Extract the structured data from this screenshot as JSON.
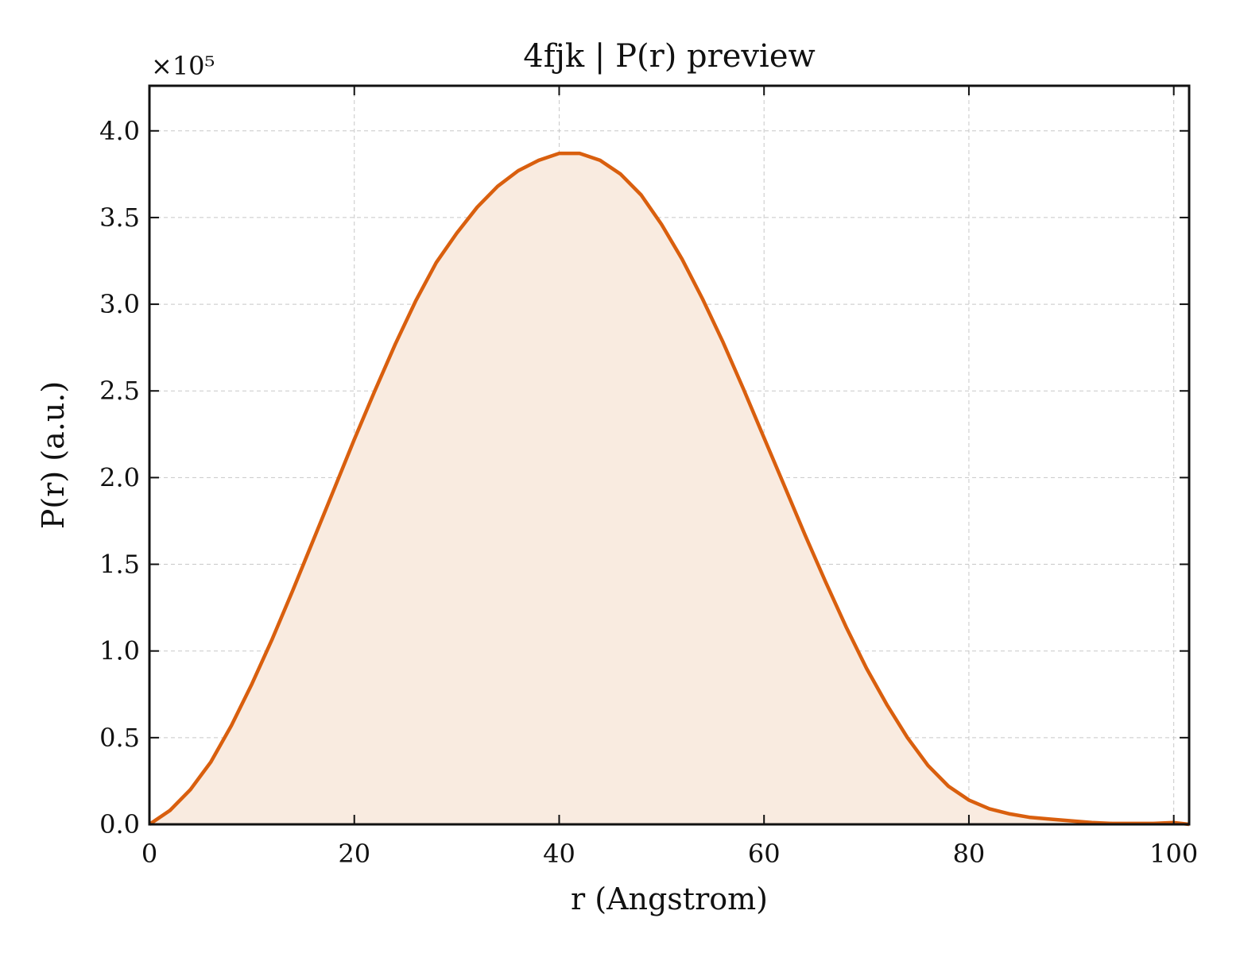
{
  "chart_data": {
    "type": "area",
    "title": "4fjk | P(r) preview",
    "xlabel": "r (Angstrom)",
    "ylabel": "P(r) (a.u.)",
    "y_offset_label": "×10⁵",
    "xlim": [
      0,
      101.5
    ],
    "ylim": [
      0,
      4.26
    ],
    "xticks": [
      0,
      20,
      40,
      60,
      80,
      100
    ],
    "xtick_labels": [
      "0",
      "20",
      "40",
      "60",
      "80",
      "100"
    ],
    "yticks": [
      0,
      0.5,
      1.0,
      1.5,
      2.0,
      2.5,
      3.0,
      3.5,
      4.0
    ],
    "ytick_labels": [
      "0.0",
      "0.5",
      "1.0",
      "1.5",
      "2.0",
      "2.5",
      "3.0",
      "3.5",
      "4.0"
    ],
    "grid": true,
    "line_color": "#d95f0e",
    "fill_color": "#f9ebe0",
    "series": [
      {
        "x": [
          0,
          2,
          4,
          6,
          8,
          10,
          12,
          14,
          16,
          18,
          20,
          22,
          24,
          26,
          28,
          30,
          32,
          34,
          36,
          38,
          40,
          42,
          44,
          46,
          48,
          50,
          52,
          54,
          56,
          58,
          60,
          62,
          64,
          66,
          68,
          70,
          72,
          74,
          76,
          78,
          80,
          82,
          84,
          86,
          88,
          90,
          92,
          94,
          96,
          98,
          100,
          101.5
        ],
        "y": [
          0.0,
          0.08,
          0.2,
          0.36,
          0.57,
          0.81,
          1.07,
          1.35,
          1.64,
          1.93,
          2.22,
          2.5,
          2.77,
          3.02,
          3.24,
          3.41,
          3.56,
          3.68,
          3.77,
          3.83,
          3.87,
          3.87,
          3.83,
          3.75,
          3.63,
          3.46,
          3.26,
          3.03,
          2.78,
          2.51,
          2.23,
          1.95,
          1.67,
          1.4,
          1.14,
          0.9,
          0.69,
          0.5,
          0.34,
          0.22,
          0.14,
          0.09,
          0.06,
          0.04,
          0.03,
          0.02,
          0.01,
          0.005,
          0.005,
          0.005,
          0.01,
          0.0
        ]
      }
    ]
  }
}
